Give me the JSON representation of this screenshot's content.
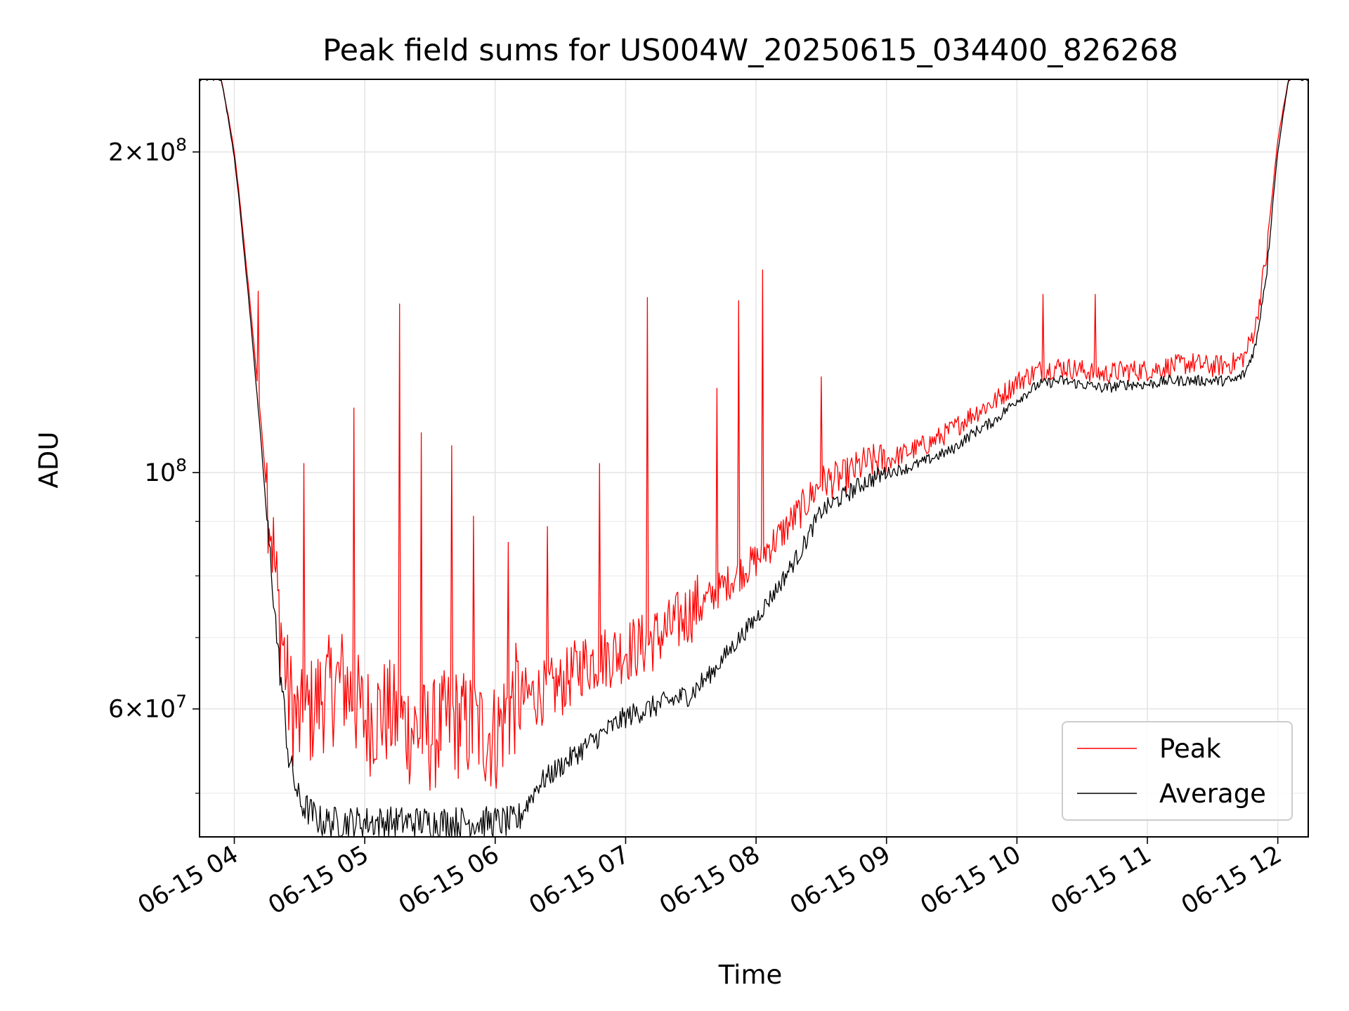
{
  "chart_data": {
    "type": "line",
    "title": "Peak field sums for US004W_20250615_034400_826268",
    "xlabel": "Time",
    "ylabel": "ADU",
    "yscale": "log",
    "xlim": [
      "2025-06-15 03:44",
      "2025-06-15 12:14"
    ],
    "ylim": [
      45500000,
      234000000
    ],
    "grid": true,
    "legend_position": "lower-right",
    "x_ticks": [
      "06-15 04",
      "06-15 05",
      "06-15 06",
      "06-15 07",
      "06-15 08",
      "06-15 09",
      "06-15 10",
      "06-15 11",
      "06-15 12"
    ],
    "y_ticks": [
      {
        "value": 200000000,
        "mantissa": "2",
        "exponent": "8"
      },
      {
        "value": 100000000,
        "mantissa": "",
        "exponent": "8"
      },
      {
        "value": 60000000,
        "mantissa": "6",
        "exponent": "7"
      }
    ],
    "series": [
      {
        "name": "Peak",
        "color": "#ff0000",
        "x": [
          "2025-06-15 03:44",
          "2025-06-15 03:54",
          "2025-06-15 04:00",
          "2025-06-15 04:05",
          "2025-06-15 04:10",
          "2025-06-15 04:15",
          "2025-06-15 04:20",
          "2025-06-15 04:25",
          "2025-06-15 04:30",
          "2025-06-15 04:40",
          "2025-06-15 04:50",
          "2025-06-15 05:00",
          "2025-06-15 05:10",
          "2025-06-15 05:20",
          "2025-06-15 05:30",
          "2025-06-15 05:40",
          "2025-06-15 05:50",
          "2025-06-15 06:00",
          "2025-06-15 06:10",
          "2025-06-15 06:20",
          "2025-06-15 06:30",
          "2025-06-15 06:40",
          "2025-06-15 06:50",
          "2025-06-15 07:00",
          "2025-06-15 07:10",
          "2025-06-15 07:20",
          "2025-06-15 07:30",
          "2025-06-15 07:40",
          "2025-06-15 07:50",
          "2025-06-15 08:00",
          "2025-06-15 08:10",
          "2025-06-15 08:20",
          "2025-06-15 08:30",
          "2025-06-15 08:40",
          "2025-06-15 08:50",
          "2025-06-15 09:00",
          "2025-06-15 09:10",
          "2025-06-15 09:20",
          "2025-06-15 09:30",
          "2025-06-15 09:40",
          "2025-06-15 09:50",
          "2025-06-15 10:00",
          "2025-06-15 10:10",
          "2025-06-15 10:20",
          "2025-06-15 10:30",
          "2025-06-15 10:40",
          "2025-06-15 10:50",
          "2025-06-15 11:00",
          "2025-06-15 11:10",
          "2025-06-15 11:20",
          "2025-06-15 11:30",
          "2025-06-15 11:40",
          "2025-06-15 11:45",
          "2025-06-15 11:50",
          "2025-06-15 11:55",
          "2025-06-15 12:00",
          "2025-06-15 12:05",
          "2025-06-15 12:14"
        ],
        "y": [
          234000000,
          234000000,
          200000000,
          160000000,
          125000000,
          95000000,
          73000000,
          60000000,
          56000000,
          60000000,
          62000000,
          57000000,
          58000000,
          56000000,
          55000000,
          57000000,
          56000000,
          55000000,
          60000000,
          61000000,
          62000000,
          65000000,
          66000000,
          67000000,
          68000000,
          70000000,
          73000000,
          76000000,
          79000000,
          82000000,
          86000000,
          91000000,
          97000000,
          98000000,
          101000000,
          102000000,
          104000000,
          106000000,
          109000000,
          113000000,
          116000000,
          121000000,
          124000000,
          125000000,
          124000000,
          123000000,
          124000000,
          124000000,
          125000000,
          126000000,
          125000000,
          126000000,
          128000000,
          137000000,
          160000000,
          205000000,
          234000000,
          234000000
        ],
        "spikes": [
          {
            "x": "2025-06-15 04:11",
            "y": 148000000
          },
          {
            "x": "2025-06-15 04:32",
            "y": 102000000
          },
          {
            "x": "2025-06-15 04:55",
            "y": 115000000
          },
          {
            "x": "2025-06-15 05:16",
            "y": 144000000
          },
          {
            "x": "2025-06-15 05:26",
            "y": 109000000
          },
          {
            "x": "2025-06-15 05:40",
            "y": 106000000
          },
          {
            "x": "2025-06-15 05:50",
            "y": 91000000
          },
          {
            "x": "2025-06-15 06:06",
            "y": 86000000
          },
          {
            "x": "2025-06-15 06:24",
            "y": 89000000
          },
          {
            "x": "2025-06-15 06:48",
            "y": 102000000
          },
          {
            "x": "2025-06-15 07:10",
            "y": 146000000
          },
          {
            "x": "2025-06-15 07:42",
            "y": 120000000
          },
          {
            "x": "2025-06-15 07:52",
            "y": 145000000
          },
          {
            "x": "2025-06-15 08:03",
            "y": 155000000
          },
          {
            "x": "2025-06-15 08:30",
            "y": 123000000
          },
          {
            "x": "2025-06-15 10:12",
            "y": 147000000
          },
          {
            "x": "2025-06-15 10:36",
            "y": 147000000
          }
        ]
      },
      {
        "name": "Average",
        "color": "#000000",
        "x": [
          "2025-06-15 03:44",
          "2025-06-15 03:54",
          "2025-06-15 04:00",
          "2025-06-15 04:05",
          "2025-06-15 04:10",
          "2025-06-15 04:15",
          "2025-06-15 04:20",
          "2025-06-15 04:25",
          "2025-06-15 04:30",
          "2025-06-15 04:40",
          "2025-06-15 04:50",
          "2025-06-15 05:00",
          "2025-06-15 05:10",
          "2025-06-15 05:20",
          "2025-06-15 05:30",
          "2025-06-15 05:40",
          "2025-06-15 05:50",
          "2025-06-15 06:00",
          "2025-06-15 06:10",
          "2025-06-15 06:20",
          "2025-06-15 06:30",
          "2025-06-15 06:40",
          "2025-06-15 06:50",
          "2025-06-15 07:00",
          "2025-06-15 07:10",
          "2025-06-15 07:20",
          "2025-06-15 07:30",
          "2025-06-15 07:40",
          "2025-06-15 07:50",
          "2025-06-15 08:00",
          "2025-06-15 08:10",
          "2025-06-15 08:20",
          "2025-06-15 08:30",
          "2025-06-15 08:40",
          "2025-06-15 08:50",
          "2025-06-15 09:00",
          "2025-06-15 09:10",
          "2025-06-15 09:20",
          "2025-06-15 09:30",
          "2025-06-15 09:40",
          "2025-06-15 09:50",
          "2025-06-15 10:00",
          "2025-06-15 10:10",
          "2025-06-15 10:20",
          "2025-06-15 10:30",
          "2025-06-15 10:40",
          "2025-06-15 10:50",
          "2025-06-15 11:00",
          "2025-06-15 11:10",
          "2025-06-15 11:20",
          "2025-06-15 11:30",
          "2025-06-15 11:40",
          "2025-06-15 11:45",
          "2025-06-15 11:50",
          "2025-06-15 11:55",
          "2025-06-15 12:00",
          "2025-06-15 12:05",
          "2025-06-15 12:14"
        ],
        "y": [
          234000000,
          234000000,
          198000000,
          157000000,
          121000000,
          90000000,
          68000000,
          54000000,
          49000000,
          47000000,
          47000000,
          47000000,
          47000000,
          47000000,
          47000000,
          47000000,
          47000000,
          47000000,
          47000000,
          51000000,
          53000000,
          55000000,
          57000000,
          59000000,
          60000000,
          61000000,
          62000000,
          65000000,
          69000000,
          73000000,
          78000000,
          84000000,
          92000000,
          95000000,
          98000000,
          100000000,
          101000000,
          103000000,
          105000000,
          109000000,
          112000000,
          117000000,
          121000000,
          122000000,
          121000000,
          120000000,
          121000000,
          121000000,
          122000000,
          122000000,
          122000000,
          122000000,
          124000000,
          132000000,
          155000000,
          200000000,
          234000000,
          234000000
        ]
      }
    ]
  }
}
